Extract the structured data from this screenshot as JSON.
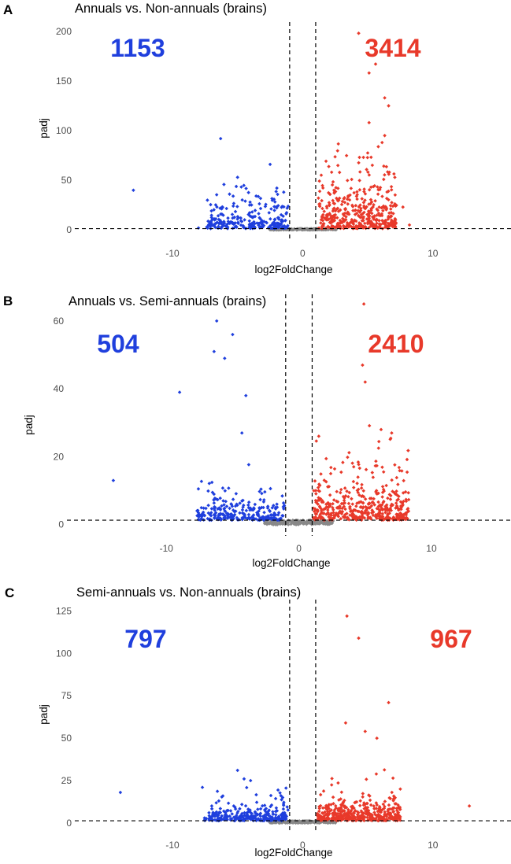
{
  "colors": {
    "up": "#e8392a",
    "down": "#1f3fdd",
    "ns": "#888888"
  },
  "chart_data": [
    {
      "type": "scatter",
      "panel": "A",
      "title": "Annuals vs. Non-annuals (brains)",
      "xlabel": "log2FoldChange",
      "ylabel": "padj",
      "xlim": [
        -17.5,
        16
      ],
      "ylim": [
        -3,
        203
      ],
      "xticks": [
        -10,
        0,
        10
      ],
      "yticks": [
        0,
        50,
        100,
        150,
        200
      ],
      "vlines": [
        -1,
        1
      ],
      "hline": 1.3,
      "down_count": "1153",
      "up_count": "3414",
      "outliers": [
        [
          -13,
          40
        ],
        [
          -6.3,
          92
        ],
        [
          -2.5,
          66
        ],
        [
          -5,
          53
        ],
        [
          -8,
          2
        ],
        [
          4.3,
          198
        ],
        [
          5.1,
          158
        ],
        [
          5.6,
          167
        ],
        [
          6.3,
          133
        ],
        [
          6.6,
          125
        ],
        [
          5.1,
          108
        ],
        [
          6.3,
          95
        ],
        [
          6.1,
          88
        ],
        [
          7.7,
          23
        ],
        [
          8.2,
          5
        ]
      ],
      "down_cloud": {
        "xr": [
          -7.4,
          -1.1
        ],
        "yc": 15,
        "ymax": 58
      },
      "up_cloud": {
        "xr": [
          1.1,
          7.3
        ],
        "yc": 25,
        "ymax": 92
      }
    },
    {
      "type": "scatter",
      "panel": "B",
      "title": "Annuals vs. Semi-annuals (brains)",
      "xlabel": "log2FoldChange",
      "ylabel": "padj",
      "xlim": [
        -17.5,
        16
      ],
      "ylim": [
        -1,
        66
      ],
      "xticks": [
        -10,
        0,
        10
      ],
      "yticks": [
        0,
        20,
        40,
        60
      ],
      "vlines": [
        -1,
        1
      ],
      "hline": 1.3,
      "down_count": "504",
      "up_count": "2410",
      "outliers": [
        [
          -14,
          13
        ],
        [
          -9,
          39
        ],
        [
          -6.2,
          60
        ],
        [
          -6.4,
          51
        ],
        [
          -5.6,
          49
        ],
        [
          -5,
          56
        ],
        [
          -4,
          38
        ],
        [
          -4.3,
          27
        ],
        [
          4.9,
          65
        ],
        [
          4.8,
          47
        ],
        [
          5,
          42
        ],
        [
          7,
          27
        ]
      ],
      "down_cloud": {
        "xr": [
          -7.7,
          -1.1
        ],
        "yc": 4,
        "ymax": 27
      },
      "up_cloud": {
        "xr": [
          1.1,
          8.3
        ],
        "yc": 7,
        "ymax": 38
      }
    },
    {
      "type": "scatter",
      "panel": "C",
      "title": "Semi-annuals vs. Non-annuals (brains)",
      "xlabel": "log2FoldChange",
      "ylabel": "padj",
      "xlim": [
        -17.5,
        16
      ],
      "ylim": [
        -1,
        128
      ],
      "xticks": [
        -10,
        0,
        10
      ],
      "yticks": [
        0,
        25,
        50,
        75,
        100,
        125
      ],
      "vlines": [
        -1,
        1
      ],
      "hline": 1.3,
      "down_count": "797",
      "up_count": "967",
      "outliers": [
        [
          -14,
          18
        ],
        [
          -7.7,
          21
        ],
        [
          -5,
          31
        ],
        [
          -4.5,
          26
        ],
        [
          -4,
          25
        ],
        [
          3.4,
          122
        ],
        [
          4.3,
          109
        ],
        [
          6.6,
          71
        ],
        [
          3.3,
          59
        ],
        [
          4.8,
          54
        ],
        [
          5.7,
          50
        ],
        [
          7.5,
          20
        ],
        [
          12.8,
          10
        ]
      ],
      "down_cloud": {
        "xr": [
          -7.6,
          -1.1
        ],
        "yc": 5,
        "ymax": 24
      },
      "up_cloud": {
        "xr": [
          1.1,
          7.5
        ],
        "yc": 7,
        "ymax": 38
      }
    }
  ]
}
